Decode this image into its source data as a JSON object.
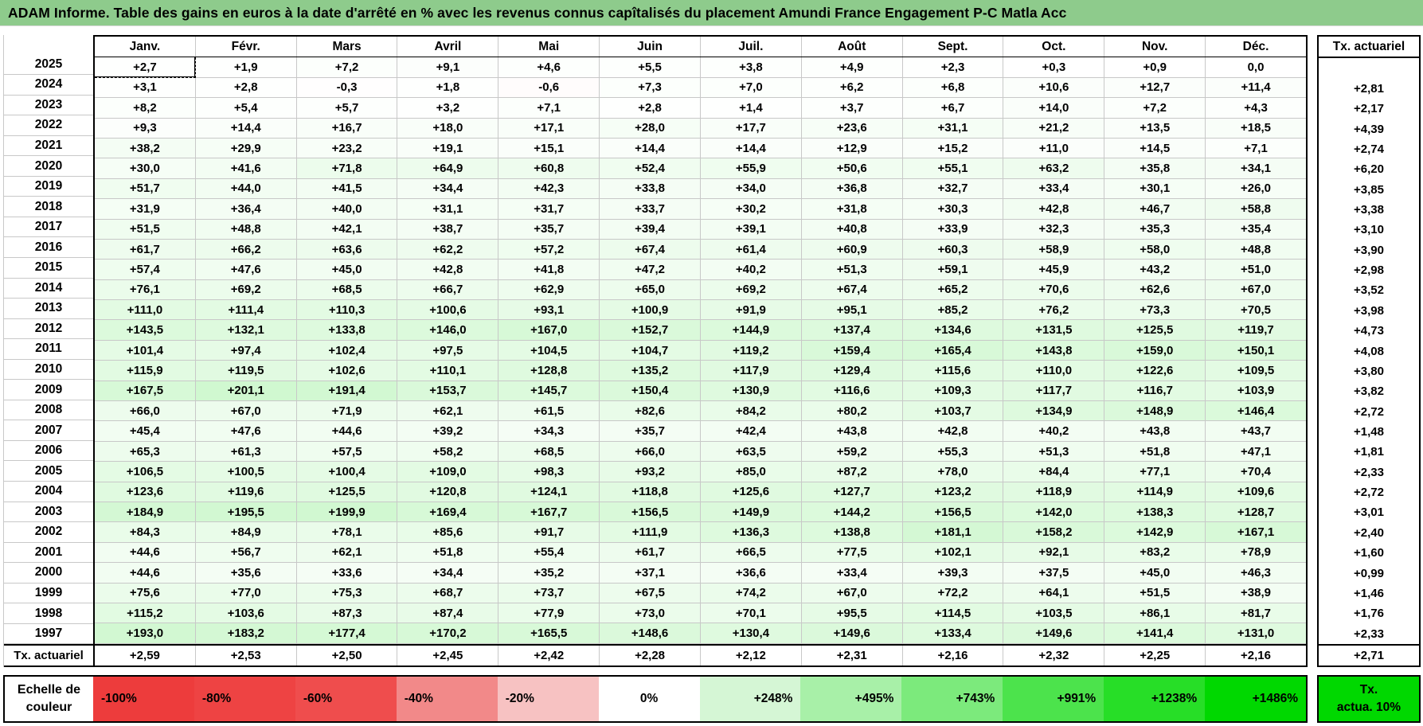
{
  "title": "ADAM Informe. Table des gains en euros à la date d'arrêté en % avec les revenus connus capîtalisés du placement Amundi France Engagement P-C Matla Acc",
  "colors": {
    "title_bg": "#8ecb8c",
    "positive_max_color": "#00d800",
    "negative_max_color": "#ed3a3a",
    "grid_line": "#c8c8c8",
    "scale_positive_max": 1486,
    "scale_negative_min": -100
  },
  "selection": {
    "row": 0,
    "col": 0
  },
  "table": {
    "months": [
      "Janv.",
      "Févr.",
      "Mars",
      "Avril",
      "Mai",
      "Juin",
      "Juil.",
      "Août",
      "Sept.",
      "Oct.",
      "Nov.",
      "Déc."
    ],
    "right_column_header": "Tx. actuariel",
    "rows": [
      {
        "year": "2025",
        "values": [
          "+2,7",
          "+1,9",
          "+7,2",
          "+9,1",
          "+4,6",
          "+5,5",
          "+3,8",
          "+4,9",
          "+2,3",
          "+0,3",
          "+0,9",
          "0,0"
        ],
        "tx": ""
      },
      {
        "year": "2024",
        "values": [
          "+3,1",
          "+2,8",
          "-0,3",
          "+1,8",
          "-0,6",
          "+7,3",
          "+7,0",
          "+6,2",
          "+6,8",
          "+10,6",
          "+12,7",
          "+11,4"
        ],
        "tx": "+2,81"
      },
      {
        "year": "2023",
        "values": [
          "+8,2",
          "+5,4",
          "+5,7",
          "+3,2",
          "+7,1",
          "+2,8",
          "+1,4",
          "+3,7",
          "+6,7",
          "+14,0",
          "+7,2",
          "+4,3"
        ],
        "tx": "+2,17"
      },
      {
        "year": "2022",
        "values": [
          "+9,3",
          "+14,4",
          "+16,7",
          "+18,0",
          "+17,1",
          "+28,0",
          "+17,7",
          "+23,6",
          "+31,1",
          "+21,2",
          "+13,5",
          "+18,5"
        ],
        "tx": "+4,39"
      },
      {
        "year": "2021",
        "values": [
          "+38,2",
          "+29,9",
          "+23,2",
          "+19,1",
          "+15,1",
          "+14,4",
          "+14,4",
          "+12,9",
          "+15,2",
          "+11,0",
          "+14,5",
          "+7,1"
        ],
        "tx": "+2,74"
      },
      {
        "year": "2020",
        "values": [
          "+30,0",
          "+41,6",
          "+71,8",
          "+64,9",
          "+60,8",
          "+52,4",
          "+55,9",
          "+50,6",
          "+55,1",
          "+63,2",
          "+35,8",
          "+34,1"
        ],
        "tx": "+6,20"
      },
      {
        "year": "2019",
        "values": [
          "+51,7",
          "+44,0",
          "+41,5",
          "+34,4",
          "+42,3",
          "+33,8",
          "+34,0",
          "+36,8",
          "+32,7",
          "+33,4",
          "+30,1",
          "+26,0"
        ],
        "tx": "+3,85"
      },
      {
        "year": "2018",
        "values": [
          "+31,9",
          "+36,4",
          "+40,0",
          "+31,1",
          "+31,7",
          "+33,7",
          "+30,2",
          "+31,8",
          "+30,3",
          "+42,8",
          "+46,7",
          "+58,8"
        ],
        "tx": "+3,38"
      },
      {
        "year": "2017",
        "values": [
          "+51,5",
          "+48,8",
          "+42,1",
          "+38,7",
          "+35,7",
          "+39,4",
          "+39,1",
          "+40,8",
          "+33,9",
          "+32,3",
          "+35,3",
          "+35,4"
        ],
        "tx": "+3,10"
      },
      {
        "year": "2016",
        "values": [
          "+61,7",
          "+66,2",
          "+63,6",
          "+62,2",
          "+57,2",
          "+67,4",
          "+61,4",
          "+60,9",
          "+60,3",
          "+58,9",
          "+58,0",
          "+48,8"
        ],
        "tx": "+3,90"
      },
      {
        "year": "2015",
        "values": [
          "+57,4",
          "+47,6",
          "+45,0",
          "+42,8",
          "+41,8",
          "+47,2",
          "+40,2",
          "+51,3",
          "+59,1",
          "+45,9",
          "+43,2",
          "+51,0"
        ],
        "tx": "+2,98"
      },
      {
        "year": "2014",
        "values": [
          "+76,1",
          "+69,2",
          "+68,5",
          "+66,7",
          "+62,9",
          "+65,0",
          "+69,2",
          "+67,4",
          "+65,2",
          "+70,6",
          "+62,6",
          "+67,0"
        ],
        "tx": "+3,52"
      },
      {
        "year": "2013",
        "values": [
          "+111,0",
          "+111,4",
          "+110,3",
          "+100,6",
          "+93,1",
          "+100,9",
          "+91,9",
          "+95,1",
          "+85,2",
          "+76,2",
          "+73,3",
          "+70,5"
        ],
        "tx": "+3,98"
      },
      {
        "year": "2012",
        "values": [
          "+143,5",
          "+132,1",
          "+133,8",
          "+146,0",
          "+167,0",
          "+152,7",
          "+144,9",
          "+137,4",
          "+134,6",
          "+131,5",
          "+125,5",
          "+119,7"
        ],
        "tx": "+4,73"
      },
      {
        "year": "2011",
        "values": [
          "+101,4",
          "+97,4",
          "+102,4",
          "+97,5",
          "+104,5",
          "+104,7",
          "+119,2",
          "+159,4",
          "+165,4",
          "+143,8",
          "+159,0",
          "+150,1"
        ],
        "tx": "+4,08"
      },
      {
        "year": "2010",
        "values": [
          "+115,9",
          "+119,5",
          "+102,6",
          "+110,1",
          "+128,8",
          "+135,2",
          "+117,9",
          "+129,4",
          "+115,6",
          "+110,0",
          "+122,6",
          "+109,5"
        ],
        "tx": "+3,80"
      },
      {
        "year": "2009",
        "values": [
          "+167,5",
          "+201,1",
          "+191,4",
          "+153,7",
          "+145,7",
          "+150,4",
          "+130,9",
          "+116,6",
          "+109,3",
          "+117,7",
          "+116,7",
          "+103,9"
        ],
        "tx": "+3,82"
      },
      {
        "year": "2008",
        "values": [
          "+66,0",
          "+67,0",
          "+71,9",
          "+62,1",
          "+61,5",
          "+82,6",
          "+84,2",
          "+80,2",
          "+103,7",
          "+134,9",
          "+148,9",
          "+146,4"
        ],
        "tx": "+2,72"
      },
      {
        "year": "2007",
        "values": [
          "+45,4",
          "+47,6",
          "+44,6",
          "+39,2",
          "+34,3",
          "+35,7",
          "+42,4",
          "+43,8",
          "+42,8",
          "+40,2",
          "+43,8",
          "+43,7"
        ],
        "tx": "+1,48"
      },
      {
        "year": "2006",
        "values": [
          "+65,3",
          "+61,3",
          "+57,5",
          "+58,2",
          "+68,5",
          "+66,0",
          "+63,5",
          "+59,2",
          "+55,3",
          "+51,3",
          "+51,8",
          "+47,1"
        ],
        "tx": "+1,81"
      },
      {
        "year": "2005",
        "values": [
          "+106,5",
          "+100,5",
          "+100,4",
          "+109,0",
          "+98,3",
          "+93,2",
          "+85,0",
          "+87,2",
          "+78,0",
          "+84,4",
          "+77,1",
          "+70,4"
        ],
        "tx": "+2,33"
      },
      {
        "year": "2004",
        "values": [
          "+123,6",
          "+119,6",
          "+125,5",
          "+120,8",
          "+124,1",
          "+118,8",
          "+125,6",
          "+127,7",
          "+123,2",
          "+118,9",
          "+114,9",
          "+109,6"
        ],
        "tx": "+2,72"
      },
      {
        "year": "2003",
        "values": [
          "+184,9",
          "+195,5",
          "+199,9",
          "+169,4",
          "+167,7",
          "+156,5",
          "+149,9",
          "+144,2",
          "+156,5",
          "+142,0",
          "+138,3",
          "+128,7"
        ],
        "tx": "+3,01"
      },
      {
        "year": "2002",
        "values": [
          "+84,3",
          "+84,9",
          "+78,1",
          "+85,6",
          "+91,7",
          "+111,9",
          "+136,3",
          "+138,8",
          "+181,1",
          "+158,2",
          "+142,9",
          "+167,1"
        ],
        "tx": "+2,40"
      },
      {
        "year": "2001",
        "values": [
          "+44,6",
          "+56,7",
          "+62,1",
          "+51,8",
          "+55,4",
          "+61,7",
          "+66,5",
          "+77,5",
          "+102,1",
          "+92,1",
          "+83,2",
          "+78,9"
        ],
        "tx": "+1,60"
      },
      {
        "year": "2000",
        "values": [
          "+44,6",
          "+35,6",
          "+33,6",
          "+34,4",
          "+35,2",
          "+37,1",
          "+36,6",
          "+33,4",
          "+39,3",
          "+37,5",
          "+45,0",
          "+46,3"
        ],
        "tx": "+0,99"
      },
      {
        "year": "1999",
        "values": [
          "+75,6",
          "+77,0",
          "+75,3",
          "+68,7",
          "+73,7",
          "+67,5",
          "+74,2",
          "+67,0",
          "+72,2",
          "+64,1",
          "+51,5",
          "+38,9"
        ],
        "tx": "+1,46"
      },
      {
        "year": "1998",
        "values": [
          "+115,2",
          "+103,6",
          "+87,3",
          "+87,4",
          "+77,9",
          "+73,0",
          "+70,1",
          "+95,5",
          "+114,5",
          "+103,5",
          "+86,1",
          "+81,7"
        ],
        "tx": "+1,76"
      },
      {
        "year": "1997",
        "values": [
          "+193,0",
          "+183,2",
          "+177,4",
          "+170,2",
          "+165,5",
          "+148,6",
          "+130,4",
          "+149,6",
          "+133,4",
          "+149,6",
          "+141,4",
          "+131,0"
        ],
        "tx": "+2,33"
      }
    ],
    "footer": {
      "label": "Tx. actuariel",
      "values": [
        "+2,59",
        "+2,53",
        "+2,50",
        "+2,45",
        "+2,42",
        "+2,28",
        "+2,12",
        "+2,31",
        "+2,16",
        "+2,32",
        "+2,25",
        "+2,16"
      ],
      "tx": "+2,71"
    }
  },
  "legend": {
    "label_line1": "Echelle de",
    "label_line2": "couleur",
    "cells": [
      {
        "label": "-100%",
        "color": "#ed3c3c",
        "align": "left"
      },
      {
        "label": "-80%",
        "color": "#ee4343",
        "align": "left"
      },
      {
        "label": "-60%",
        "color": "#ef4d4d",
        "align": "left"
      },
      {
        "label": "-40%",
        "color": "#f28989",
        "align": "left"
      },
      {
        "label": "-20%",
        "color": "#f7c2c2",
        "align": "left"
      },
      {
        "label": "0%",
        "color": "#ffffff",
        "align": "center"
      },
      {
        "label": "+248%",
        "color": "#d5f6d5",
        "align": "right"
      },
      {
        "label": "+495%",
        "color": "#a8f0a8",
        "align": "right"
      },
      {
        "label": "+743%",
        "color": "#7cea7c",
        "align": "right"
      },
      {
        "label": "+991%",
        "color": "#4ce34c",
        "align": "right"
      },
      {
        "label": "+1238%",
        "color": "#27de27",
        "align": "right"
      },
      {
        "label": "+1486%",
        "color": "#00d800",
        "align": "right"
      }
    ],
    "right_box": {
      "line1": "Tx.",
      "line2": "actua. 10%",
      "color": "#00d800"
    }
  }
}
